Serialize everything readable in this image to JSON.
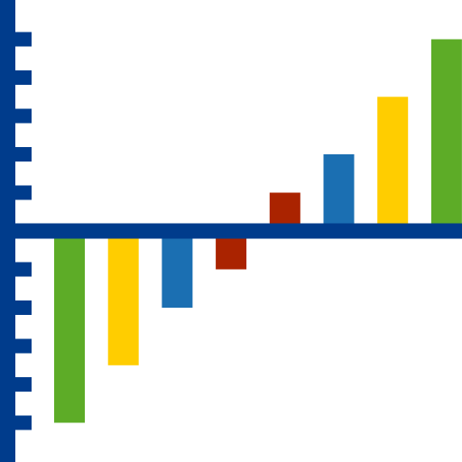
{
  "chart_data": {
    "type": "bar",
    "categories": [
      "",
      "",
      "",
      "",
      "",
      "",
      "",
      ""
    ],
    "values": [
      -5,
      -3.5,
      -2,
      -1,
      1,
      2,
      3.5,
      5
    ],
    "ylim": [
      -5.5,
      5.5
    ],
    "ytick_step": 1,
    "grid": false,
    "legend": "none",
    "bar_colors": [
      "#5dac27",
      "#ffcd00",
      "#1b6fb2",
      "#aa2300",
      "#aa2300",
      "#1b6fb2",
      "#ffcd00",
      "#5dac27"
    ]
  },
  "colors": {
    "axis": "#003c8c",
    "background": "#ffffff"
  }
}
